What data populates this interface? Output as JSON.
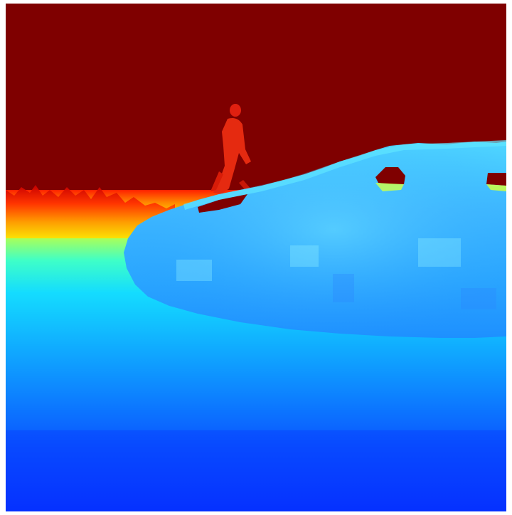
{
  "image": {
    "kind": "depth-map-visualization",
    "colormap": "jet",
    "colors": {
      "far": "#7f0000",
      "mid_far": "#ff0000",
      "mid": "#ffff00",
      "mid_near": "#00ffff",
      "near": "#0020ff"
    },
    "subjects": [
      "pedestrian-silhouette",
      "car-silhouette",
      "road-plane",
      "sky-background"
    ]
  }
}
